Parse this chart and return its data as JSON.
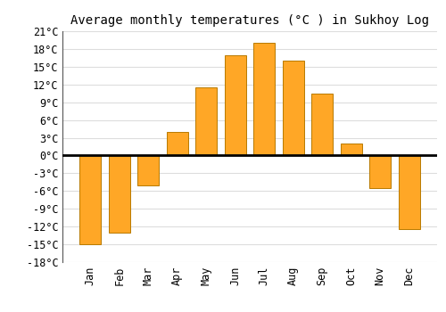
{
  "title": "Average monthly temperatures (°C ) in Sukhoy Log",
  "months": [
    "Jan",
    "Feb",
    "Mar",
    "Apr",
    "May",
    "Jun",
    "Jul",
    "Aug",
    "Sep",
    "Oct",
    "Nov",
    "Dec"
  ],
  "values": [
    -15,
    -13,
    -5,
    4,
    11.5,
    17,
    19,
    16,
    10.5,
    2,
    -5.5,
    -12.5
  ],
  "bar_color": "#FFA726",
  "bar_color_edge": "#b87a00",
  "ylim": [
    -18,
    21
  ],
  "yticks": [
    -18,
    -15,
    -12,
    -9,
    -6,
    -3,
    0,
    3,
    6,
    9,
    12,
    15,
    18,
    21
  ],
  "ytick_labels": [
    "-18°C",
    "-15°C",
    "-12°C",
    "-9°C",
    "-6°C",
    "-3°C",
    "0°C",
    "3°C",
    "6°C",
    "9°C",
    "12°C",
    "15°C",
    "18°C",
    "21°C"
  ],
  "grid_color": "#dddddd",
  "background_color": "#ffffff",
  "zero_line_color": "#000000",
  "spine_color": "#555555",
  "title_fontsize": 10,
  "tick_fontsize": 8.5
}
